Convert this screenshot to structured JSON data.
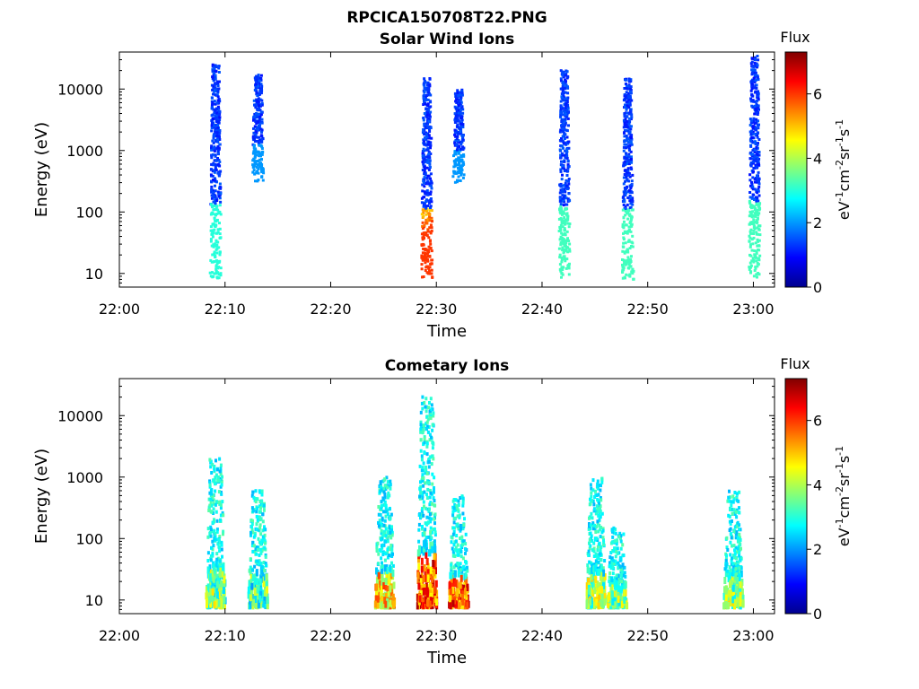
{
  "figure_title": "RPCICA150708T22.PNG",
  "chart_data": [
    {
      "type": "heatmap",
      "title": "Solar Wind Ions",
      "xlabel": "Time",
      "ylabel": "Energy (eV)",
      "x_scale": "time",
      "x_ticks": [
        "22:00",
        "22:10",
        "22:20",
        "22:30",
        "22:40",
        "22:50",
        "23:00"
      ],
      "y_scale": "log",
      "y_ticks": [
        "10",
        "100",
        "1000",
        "10000"
      ],
      "xlim": [
        "22:00",
        "23:02"
      ],
      "ylim": [
        6,
        40000
      ],
      "colorbar": {
        "title": "Flux",
        "label": "eV-1cm-2sr-1s-1",
        "range": [
          0,
          7.3
        ],
        "ticks": [
          "0",
          "2",
          "4",
          "6"
        ]
      },
      "colormap": "jet",
      "bursts": [
        {
          "center": "22:09",
          "energy_min": 8,
          "energy_max": 25000,
          "peak_flux": 3.0
        },
        {
          "center": "22:13",
          "energy_min": 300,
          "energy_max": 17000,
          "peak_flux": 2.0
        },
        {
          "center": "22:29",
          "energy_min": 8,
          "energy_max": 15000,
          "peak_flux": 6.0
        },
        {
          "center": "22:32",
          "energy_min": 300,
          "energy_max": 10000,
          "peak_flux": 2.0
        },
        {
          "center": "22:42",
          "energy_min": 8,
          "energy_max": 20000,
          "peak_flux": 3.2
        },
        {
          "center": "22:48",
          "energy_min": 8,
          "energy_max": 15000,
          "peak_flux": 3.2
        },
        {
          "center": "23:00",
          "energy_min": 8,
          "energy_max": 35000,
          "peak_flux": 3.2
        }
      ]
    },
    {
      "type": "heatmap",
      "title": "Cometary Ions",
      "xlabel": "Time",
      "ylabel": "Energy (eV)",
      "x_scale": "time",
      "x_ticks": [
        "22:00",
        "22:10",
        "22:20",
        "22:30",
        "22:40",
        "22:50",
        "23:00"
      ],
      "y_scale": "log",
      "y_ticks": [
        "10",
        "100",
        "1000",
        "10000"
      ],
      "xlim": [
        "22:00",
        "23:02"
      ],
      "ylim": [
        6,
        40000
      ],
      "colorbar": {
        "title": "Flux",
        "label": "eV-1cm-2sr-1s-1",
        "range": [
          0,
          7.3
        ],
        "ticks": [
          "0",
          "2",
          "4",
          "6"
        ]
      },
      "colormap": "jet",
      "bursts": [
        {
          "center": "22:09",
          "energy_min": 8,
          "energy_max": 2000,
          "peak_flux": 4.8
        },
        {
          "center": "22:13",
          "energy_min": 8,
          "energy_max": 600,
          "peak_flux": 4.5
        },
        {
          "center": "22:25",
          "energy_min": 8,
          "energy_max": 1000,
          "peak_flux": 6.0
        },
        {
          "center": "22:29",
          "energy_min": 8,
          "energy_max": 22000,
          "peak_flux": 7.0
        },
        {
          "center": "22:32",
          "energy_min": 8,
          "energy_max": 500,
          "peak_flux": 7.0
        },
        {
          "center": "22:45",
          "energy_min": 8,
          "energy_max": 1000,
          "peak_flux": 5.0
        },
        {
          "center": "22:47",
          "energy_min": 8,
          "energy_max": 150,
          "peak_flux": 5.0
        },
        {
          "center": "22:58",
          "energy_min": 8,
          "energy_max": 600,
          "peak_flux": 5.0
        }
      ]
    }
  ]
}
